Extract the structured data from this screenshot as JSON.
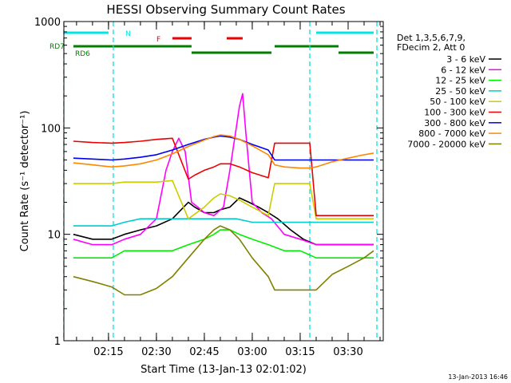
{
  "chart_data": {
    "type": "line",
    "title": "HESSI Observing Summary Count Rates",
    "xlabel": "Start Time (13-Jan-13 02:01:02)",
    "ylabel": "Count Rate (s⁻¹ detector⁻¹)",
    "yscale": "log",
    "ylim": [
      1,
      1000
    ],
    "xlim": [
      "02:01:02",
      "03:41:00"
    ],
    "x_ticks": [
      "02:15",
      "02:30",
      "02:45",
      "03:00",
      "03:15",
      "03:30"
    ],
    "y_ticks": [
      "1",
      "10",
      "100",
      "1000"
    ],
    "grid": false,
    "legend_position": "right",
    "legend_header": [
      "Det 1,3,5,6,7,9,",
      "FDecim 2, Att 0"
    ],
    "footer_date": "13-Jan-2013 16:46",
    "flags": [
      {
        "label": "N",
        "color": "#00e5e5",
        "segments": [
          [
            "02:01",
            "02:15"
          ],
          [
            "03:20",
            "03:38"
          ]
        ]
      },
      {
        "label": "F",
        "color": "#ee0000",
        "segments": [
          [
            "02:35",
            "02:41"
          ],
          [
            "02:52",
            "02:57"
          ]
        ]
      },
      {
        "label": "RD7",
        "color": "#007f00",
        "segments": [
          [
            "02:04",
            "02:41"
          ],
          [
            "03:07",
            "03:27"
          ]
        ]
      },
      {
        "label": "RD6",
        "color": "#007f00",
        "segments": [
          [
            "02:41",
            "03:06"
          ],
          [
            "03:27",
            "03:38"
          ]
        ]
      }
    ],
    "boundaries": [
      {
        "time": "02:01:00",
        "color": "#00e5e5"
      },
      {
        "time": "02:16:30",
        "color": "#00e5e5"
      },
      {
        "time": "03:18:00",
        "color": "#00e5e5"
      },
      {
        "time": "03:39:00",
        "color": "#00e5e5"
      }
    ],
    "series": [
      {
        "name": "3 - 6 keV",
        "color": "#000000",
        "times": [
          "02:04",
          "02:10",
          "02:16",
          "02:20",
          "02:25",
          "02:30",
          "02:35",
          "02:40",
          "02:42",
          "02:45",
          "02:48",
          "02:50",
          "02:53",
          "02:56",
          "02:59",
          "03:02",
          "03:05",
          "03:08",
          "03:12",
          "03:16",
          "03:20",
          "03:25",
          "03:30",
          "03:35",
          "03:38"
        ],
        "values": [
          10,
          9,
          9,
          10,
          11,
          12,
          14,
          20,
          18,
          16,
          16,
          17,
          18,
          22,
          20,
          18,
          16,
          14,
          11,
          9,
          8,
          8,
          8,
          8,
          8
        ]
      },
      {
        "name": "6 - 12 keV",
        "color": "#ff00ff",
        "times": [
          "02:04",
          "02:10",
          "02:16",
          "02:20",
          "02:25",
          "02:30",
          "02:33",
          "02:35",
          "02:37",
          "02:39",
          "02:41",
          "02:43",
          "02:45",
          "02:48",
          "02:51",
          "02:53",
          "02:55",
          "02:56",
          "02:57",
          "02:58",
          "03:00",
          "03:03",
          "03:06",
          "03:10",
          "03:15",
          "03:20",
          "03:25",
          "03:30",
          "03:35",
          "03:38"
        ],
        "values": [
          9,
          8,
          8,
          9,
          10,
          14,
          40,
          60,
          80,
          60,
          20,
          18,
          16,
          15,
          18,
          40,
          100,
          160,
          210,
          90,
          20,
          16,
          14,
          10,
          9,
          8,
          8,
          8,
          8,
          8
        ]
      },
      {
        "name": "12 - 25 keV",
        "color": "#00ee00",
        "times": [
          "02:04",
          "02:10",
          "02:16",
          "02:20",
          "02:25",
          "02:30",
          "02:35",
          "02:40",
          "02:45",
          "02:48",
          "02:50",
          "02:53",
          "02:56",
          "03:00",
          "03:05",
          "03:10",
          "03:15",
          "03:20",
          "03:25",
          "03:30",
          "03:35",
          "03:38"
        ],
        "values": [
          6,
          6,
          6,
          7,
          7,
          7,
          7,
          8,
          9,
          10,
          11,
          11,
          10,
          9,
          8,
          7,
          7,
          6,
          6,
          6,
          6,
          6
        ]
      },
      {
        "name": "25 - 50 keV",
        "color": "#00cccc",
        "times": [
          "02:04",
          "02:10",
          "02:16",
          "02:20",
          "02:25",
          "02:30",
          "02:35",
          "02:40",
          "02:45",
          "02:50",
          "02:55",
          "03:00",
          "03:05",
          "03:10",
          "03:15",
          "03:18",
          "03:25",
          "03:30",
          "03:35",
          "03:38"
        ],
        "values": [
          12,
          12,
          12,
          13,
          14,
          14,
          14,
          14,
          14,
          14,
          14,
          13,
          13,
          13,
          13,
          13,
          13,
          13,
          13,
          13
        ]
      },
      {
        "name": "50 - 100 keV",
        "color": "#cccc00",
        "times": [
          "02:04",
          "02:10",
          "02:16",
          "02:20",
          "02:25",
          "02:30",
          "02:35",
          "02:40",
          "02:45",
          "02:48",
          "02:50",
          "02:53",
          "02:56",
          "03:00",
          "03:05",
          "03:07",
          "03:10",
          "03:15",
          "03:18",
          "03:20",
          "03:25",
          "03:30",
          "03:35",
          "03:38"
        ],
        "values": [
          30,
          30,
          30,
          31,
          31,
          31,
          32,
          14,
          18,
          22,
          24,
          23,
          21,
          18,
          15,
          30,
          30,
          30,
          30,
          14,
          14,
          14,
          14,
          14
        ]
      },
      {
        "name": "100 - 300 keV",
        "color": "#ee0000",
        "times": [
          "02:04",
          "02:10",
          "02:16",
          "02:20",
          "02:25",
          "02:30",
          "02:35",
          "02:40",
          "02:42",
          "02:45",
          "02:48",
          "02:50",
          "02:53",
          "02:56",
          "03:00",
          "03:05",
          "03:07",
          "03:10",
          "03:15",
          "03:18",
          "03:20",
          "03:25",
          "03:30",
          "03:35",
          "03:38"
        ],
        "values": [
          75,
          73,
          72,
          73,
          75,
          78,
          80,
          33,
          36,
          40,
          43,
          46,
          46,
          43,
          38,
          34,
          72,
          72,
          72,
          72,
          15,
          15,
          15,
          15,
          15
        ]
      },
      {
        "name": "300 - 800 keV",
        "color": "#0000ee",
        "times": [
          "02:04",
          "02:10",
          "02:16",
          "02:20",
          "02:25",
          "02:30",
          "02:35",
          "02:40",
          "02:45",
          "02:48",
          "02:50",
          "02:53",
          "02:56",
          "03:00",
          "03:05",
          "03:07",
          "03:10",
          "03:15",
          "03:18",
          "03:20",
          "03:25",
          "03:30",
          "03:35",
          "03:38"
        ],
        "values": [
          52,
          51,
          50,
          51,
          53,
          56,
          62,
          70,
          78,
          82,
          84,
          82,
          78,
          70,
          62,
          50,
          50,
          50,
          50,
          50,
          50,
          50,
          50,
          50
        ]
      },
      {
        "name": "800 - 7000 keV",
        "color": "#ff8800",
        "times": [
          "02:04",
          "02:10",
          "02:16",
          "02:20",
          "02:25",
          "02:30",
          "02:35",
          "02:40",
          "02:45",
          "02:48",
          "02:50",
          "02:53",
          "02:56",
          "03:00",
          "03:05",
          "03:07",
          "03:10",
          "03:15",
          "03:18",
          "03:20",
          "03:25",
          "03:30",
          "03:35",
          "03:38"
        ],
        "values": [
          47,
          45,
          43,
          44,
          46,
          50,
          57,
          67,
          77,
          83,
          86,
          84,
          78,
          68,
          56,
          45,
          43,
          42,
          42,
          43,
          48,
          52,
          56,
          58
        ]
      },
      {
        "name": "7000 - 20000 keV",
        "color": "#808000",
        "times": [
          "02:04",
          "02:10",
          "02:16",
          "02:20",
          "02:25",
          "02:30",
          "02:35",
          "02:40",
          "02:45",
          "02:48",
          "02:50",
          "02:53",
          "02:56",
          "03:00",
          "03:05",
          "03:07",
          "03:10",
          "03:15",
          "03:18",
          "03:20",
          "03:25",
          "03:30",
          "03:35",
          "03:38"
        ],
        "values": [
          4,
          3.6,
          3.2,
          2.7,
          2.7,
          3.1,
          4,
          6,
          9,
          11,
          12,
          11,
          9,
          6,
          4,
          3,
          3,
          3,
          3,
          3,
          4.2,
          5,
          6,
          7
        ]
      }
    ]
  }
}
